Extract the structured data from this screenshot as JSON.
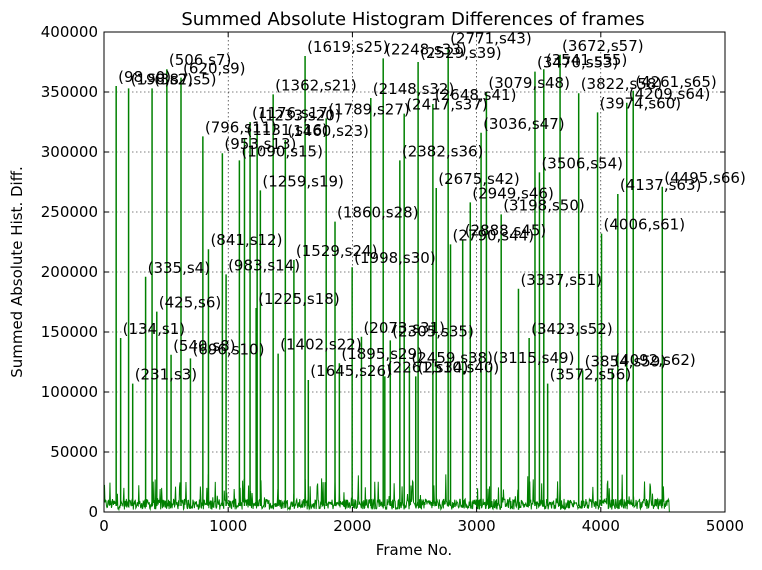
{
  "chart_data": {
    "type": "line",
    "title": "Summed Absolute Histogram Differences of frames",
    "xlabel": "Frame No.",
    "ylabel": "Summed Absolute Hist. Diff.",
    "xlim": [
      0,
      5000
    ],
    "ylim": [
      0,
      400000
    ],
    "xticks": [
      0,
      1000,
      2000,
      3000,
      4000,
      5000
    ],
    "yticks": [
      0,
      50000,
      100000,
      150000,
      200000,
      250000,
      300000,
      350000,
      400000
    ],
    "grid": true,
    "line_color": "#008000",
    "annotation_color": "#000000",
    "noise_end_frame": 4560,
    "peaks": [
      {
        "x": 98,
        "y": 355000,
        "label": "(98,s0)"
      },
      {
        "x": 134,
        "y": 145000,
        "label": "(134,s1)"
      },
      {
        "x": 198,
        "y": 353000,
        "label": "(198,s2)"
      },
      {
        "x": 231,
        "y": 107000,
        "label": "(231,s3)"
      },
      {
        "x": 335,
        "y": 196000,
        "label": "(335,s4)"
      },
      {
        "x": 387,
        "y": 353000,
        "label": "(387,s5)"
      },
      {
        "x": 425,
        "y": 167000,
        "label": "(425,s6)"
      },
      {
        "x": 506,
        "y": 369000,
        "label": "(506,s7)"
      },
      {
        "x": 540,
        "y": 131000,
        "label": "(540,s8)"
      },
      {
        "x": 620,
        "y": 362000,
        "label": "(620,s9)"
      },
      {
        "x": 696,
        "y": 128000,
        "label": "(696,s10)"
      },
      {
        "x": 796,
        "y": 313000,
        "label": "(796,s11)"
      },
      {
        "x": 841,
        "y": 219000,
        "label": "(841,s12)"
      },
      {
        "x": 953,
        "y": 299000,
        "label": "(953,s13)"
      },
      {
        "x": 983,
        "y": 198000,
        "label": "(983,s14)"
      },
      {
        "x": 1090,
        "y": 293000,
        "label": "(1090,s15)"
      },
      {
        "x": 1131,
        "y": 311000,
        "label": "(1131,s16)"
      },
      {
        "x": 1176,
        "y": 325000,
        "label": "(1176,s17)"
      },
      {
        "x": 1225,
        "y": 170000,
        "label": "(1225,s18)"
      },
      {
        "x": 1259,
        "y": 268000,
        "label": "(1259,s19)"
      },
      {
        "x": 1233,
        "y": 323000,
        "label": "(1233,s20)"
      },
      {
        "x": 1362,
        "y": 348000,
        "label": "(1362,s21)"
      },
      {
        "x": 1402,
        "y": 132000,
        "label": "(1402,s22)"
      },
      {
        "x": 1460,
        "y": 310000,
        "label": "(1460,s23)"
      },
      {
        "x": 1529,
        "y": 210000,
        "label": "(1529,s24)"
      },
      {
        "x": 1619,
        "y": 380000,
        "label": "(1619,s25)"
      },
      {
        "x": 1645,
        "y": 110000,
        "label": "(1645,s26)"
      },
      {
        "x": 1789,
        "y": 328000,
        "label": "(1789,s27)"
      },
      {
        "x": 1860,
        "y": 242000,
        "label": "(1860,s28)"
      },
      {
        "x": 1895,
        "y": 124000,
        "label": "(1895,s29)"
      },
      {
        "x": 1998,
        "y": 204000,
        "label": "(1998,s30)"
      },
      {
        "x": 2073,
        "y": 146000,
        "label": "(2073,s31)"
      },
      {
        "x": 2148,
        "y": 345000,
        "label": "(2148,s32)"
      },
      {
        "x": 2248,
        "y": 378000,
        "label": "(2248,s33)"
      },
      {
        "x": 2261,
        "y": 113000,
        "label": "(2261,s34)"
      },
      {
        "x": 2305,
        "y": 143000,
        "label": "(2305,s35)"
      },
      {
        "x": 2382,
        "y": 293000,
        "label": "(2382,s36)"
      },
      {
        "x": 2417,
        "y": 332000,
        "label": "(2417,s37)"
      },
      {
        "x": 2459,
        "y": 121000,
        "label": "(2459,s38)"
      },
      {
        "x": 2529,
        "y": 375000,
        "label": "(2529,s39)"
      },
      {
        "x": 2510,
        "y": 113000,
        "label": "(2510,s40)"
      },
      {
        "x": 2648,
        "y": 340000,
        "label": "(2648,s41)"
      },
      {
        "x": 2675,
        "y": 270000,
        "label": "(2675,s42)"
      },
      {
        "x": 2771,
        "y": 387000,
        "label": "(2771,s43)"
      },
      {
        "x": 2790,
        "y": 223000,
        "label": "(2790,s44)"
      },
      {
        "x": 2888,
        "y": 227000,
        "label": "(2888,s45)"
      },
      {
        "x": 2949,
        "y": 258000,
        "label": "(2949,s46)"
      },
      {
        "x": 3036,
        "y": 316000,
        "label": "(3036,s47)"
      },
      {
        "x": 3079,
        "y": 350000,
        "label": "(3079,s48)"
      },
      {
        "x": 3115,
        "y": 121000,
        "label": "(3115,s49)"
      },
      {
        "x": 3198,
        "y": 248000,
        "label": "(3198,s50)"
      },
      {
        "x": 3337,
        "y": 186000,
        "label": "(3337,s51)"
      },
      {
        "x": 3423,
        "y": 145000,
        "label": "(3423,s52)"
      },
      {
        "x": 3470,
        "y": 367000,
        "label": "(3470,s53)"
      },
      {
        "x": 3506,
        "y": 283000,
        "label": "(3506,s54)"
      },
      {
        "x": 3541,
        "y": 369000,
        "label": "(3541,s55)"
      },
      {
        "x": 3572,
        "y": 107000,
        "label": "(3572,s56)"
      },
      {
        "x": 3672,
        "y": 381000,
        "label": "(3672,s57)"
      },
      {
        "x": 3822,
        "y": 349000,
        "label": "(3822,s58)"
      },
      {
        "x": 3854,
        "y": 118000,
        "label": "(3854,s59)"
      },
      {
        "x": 3974,
        "y": 333000,
        "label": "(3974,s60)"
      },
      {
        "x": 4006,
        "y": 232000,
        "label": "(4006,s61)"
      },
      {
        "x": 4092,
        "y": 119000,
        "label": "(4092,s62)"
      },
      {
        "x": 4137,
        "y": 265000,
        "label": "(4137,s63)"
      },
      {
        "x": 4209,
        "y": 341000,
        "label": "(4209,s64)"
      },
      {
        "x": 4261,
        "y": 351000,
        "label": "(4261,s65)"
      },
      {
        "x": 4495,
        "y": 271000,
        "label": "(4495,s66)"
      }
    ]
  }
}
